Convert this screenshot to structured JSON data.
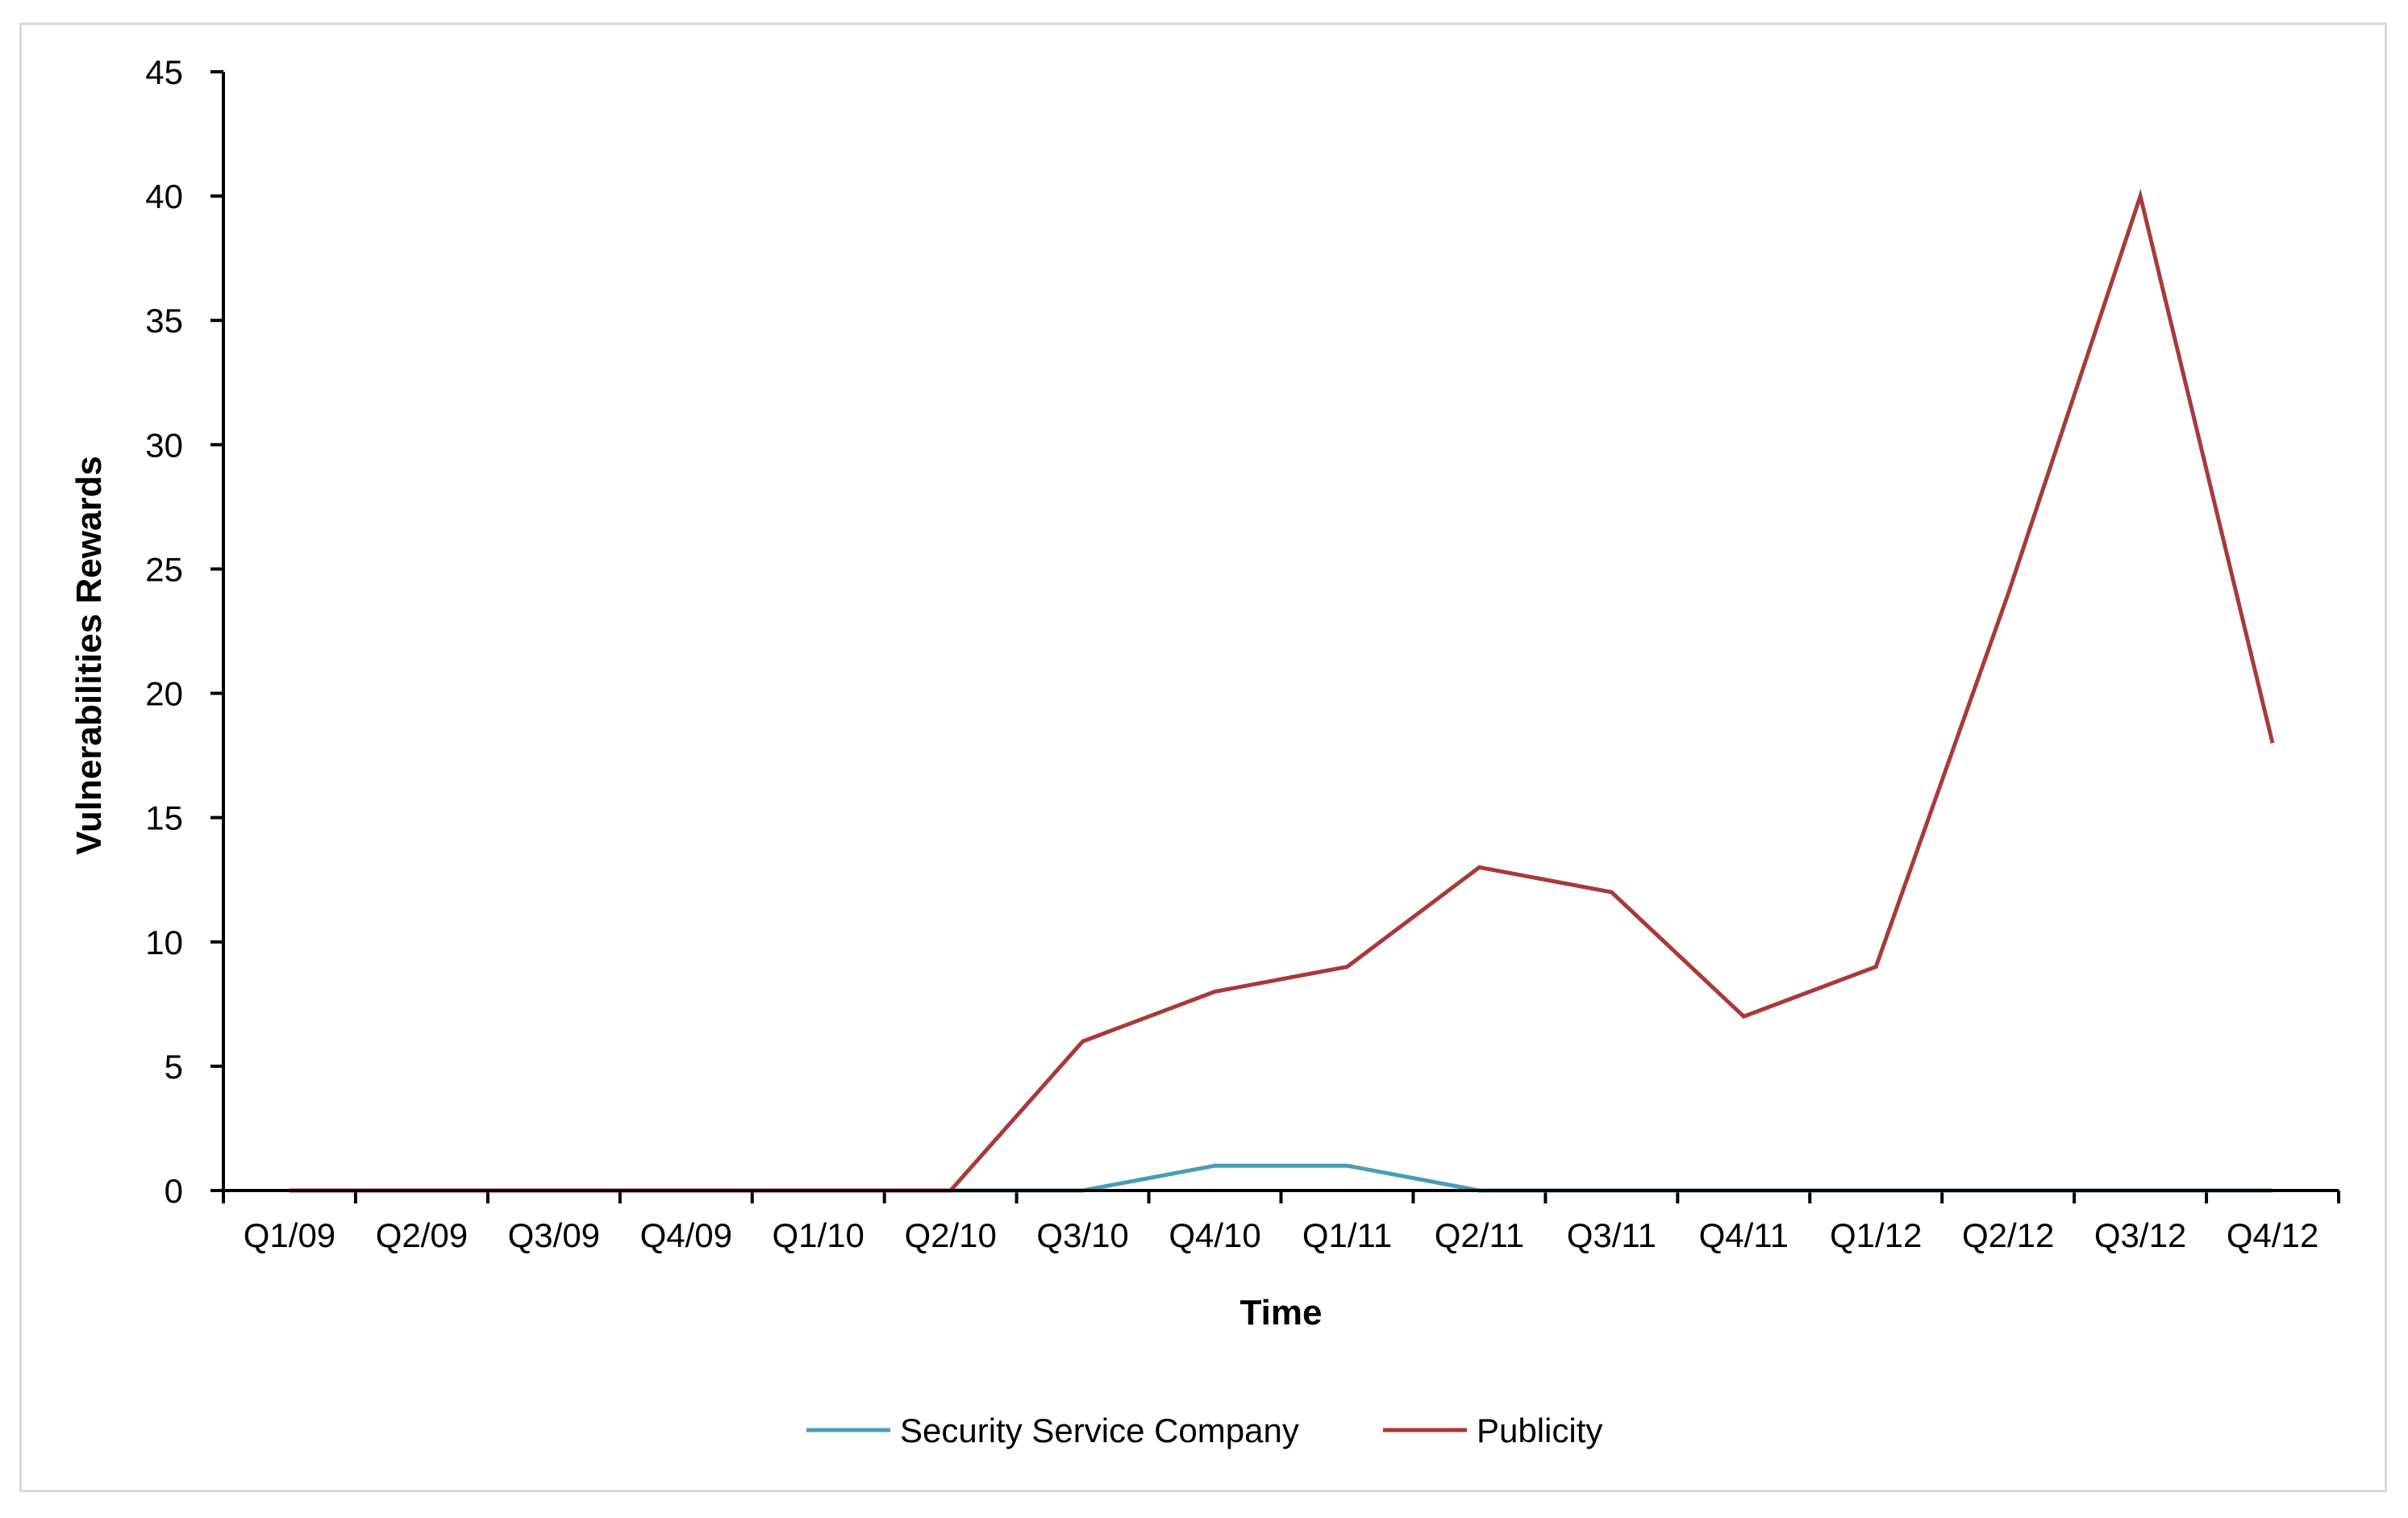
{
  "chart_data": {
    "type": "line",
    "title": "",
    "xlabel": "Time",
    "ylabel": "Vulnerabilities Rewards",
    "ylim": [
      0,
      45
    ],
    "yticks": [
      0,
      5,
      10,
      15,
      20,
      25,
      30,
      35,
      40,
      45
    ],
    "grid": false,
    "legend_position": "bottom",
    "categories": [
      "Q1/09",
      "Q2/09",
      "Q3/09",
      "Q4/09",
      "Q1/10",
      "Q2/10",
      "Q3/10",
      "Q4/10",
      "Q1/11",
      "Q2/11",
      "Q3/11",
      "Q4/11",
      "Q1/12",
      "Q2/12",
      "Q3/12",
      "Q4/12"
    ],
    "series": [
      {
        "name": "Security Service Company",
        "color": "#4a9db5",
        "values": [
          0,
          0,
          0,
          0,
          0,
          0,
          0,
          1,
          1,
          0,
          0,
          0,
          0,
          0,
          0,
          0
        ]
      },
      {
        "name": "Publicity",
        "color": "#a83a3a",
        "values": [
          0,
          0,
          0,
          0,
          0,
          0,
          6,
          8,
          9,
          13,
          12,
          7,
          9,
          24,
          40,
          18
        ]
      }
    ]
  }
}
